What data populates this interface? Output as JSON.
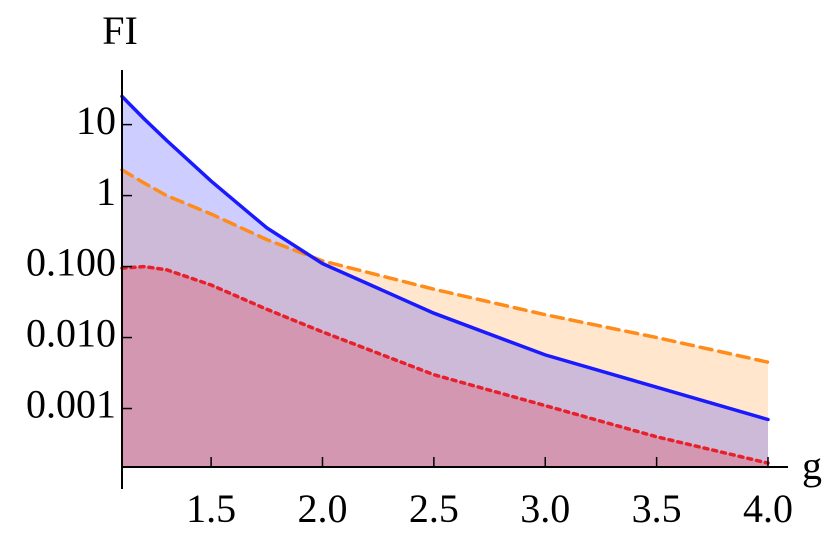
{
  "chart_data": {
    "type": "area",
    "y_label": "FI",
    "x_label": "g",
    "log_y": true,
    "x": [
      1.1,
      1.2,
      1.3,
      1.5,
      1.75,
      2.0,
      2.5,
      3.0,
      3.5,
      4.0
    ],
    "series": [
      {
        "name": "orange",
        "color": "#ff8c1a",
        "style": "dashed",
        "values": [
          2.3,
          1.5,
          1.0,
          0.55,
          0.24,
          0.12,
          0.048,
          0.021,
          0.01,
          0.0045
        ]
      },
      {
        "name": "blue",
        "color": "#1a1aff",
        "style": "solid",
        "values": [
          25,
          12,
          6,
          1.6,
          0.35,
          0.11,
          0.022,
          0.0057,
          0.002,
          0.0007
        ]
      },
      {
        "name": "red",
        "color": "#e8202a",
        "style": "dotted",
        "values": [
          0.095,
          0.1,
          0.09,
          0.055,
          0.025,
          0.012,
          0.003,
          0.0011,
          0.0004,
          0.00017
        ]
      }
    ],
    "xlim": [
      1.1,
      4.0
    ],
    "xticks": [
      1.5,
      {
        "value": 2,
        "label": "2.0"
      },
      2.5,
      {
        "value": 3,
        "label": "3.0"
      },
      3.5,
      {
        "value": 4,
        "label": "4.0"
      }
    ],
    "ylim": [
      0.00015,
      50
    ],
    "yticks": [
      10,
      1,
      {
        "value": 0.1,
        "label": "0.100"
      },
      {
        "value": 0.01,
        "label": "0.010"
      },
      {
        "value": 0.001,
        "label": "0.001"
      }
    ]
  }
}
